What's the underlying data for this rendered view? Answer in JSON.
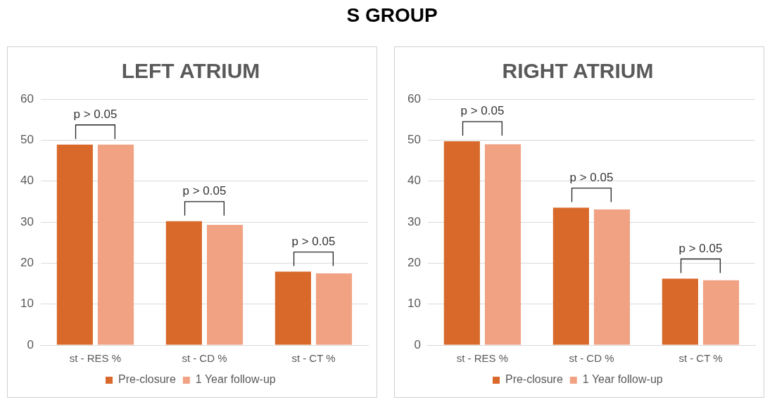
{
  "chart_data": [
    {
      "type": "other",
      "title": "S GROUP"
    },
    {
      "type": "bar",
      "subtitle": "LEFT ATRIUM",
      "categories": [
        "st - RES %",
        "st - CD %",
        "st - CT %"
      ],
      "series": [
        {
          "name": "Pre-closure",
          "color": "#d9692a",
          "values": [
            48.9,
            30.2,
            17.9
          ]
        },
        {
          "name": "1 Year follow-up",
          "color": "#f0a283",
          "values": [
            48.9,
            29.3,
            17.5
          ]
        }
      ],
      "ylim": [
        0,
        60
      ],
      "yticks": [
        0,
        10,
        20,
        30,
        40,
        50,
        60
      ],
      "grid": "y",
      "legend": "bottom",
      "annotations": [
        "p > 0.05",
        "p > 0.05",
        "p > 0.05"
      ]
    },
    {
      "type": "bar",
      "subtitle": "RIGHT ATRIUM",
      "categories": [
        "st - RES %",
        "st - CD %",
        "st - CT %"
      ],
      "series": [
        {
          "name": "Pre-closure",
          "color": "#d9692a",
          "values": [
            49.7,
            33.5,
            16.2
          ]
        },
        {
          "name": "1 Year follow-up",
          "color": "#f0a283",
          "values": [
            49.0,
            33.1,
            15.8
          ]
        }
      ],
      "ylim": [
        0,
        60
      ],
      "yticks": [
        0,
        10,
        20,
        30,
        40,
        50,
        60
      ],
      "grid": "y",
      "legend": "bottom",
      "annotations": [
        "p > 0.05",
        "p > 0.05",
        "p > 0.05"
      ]
    }
  ]
}
